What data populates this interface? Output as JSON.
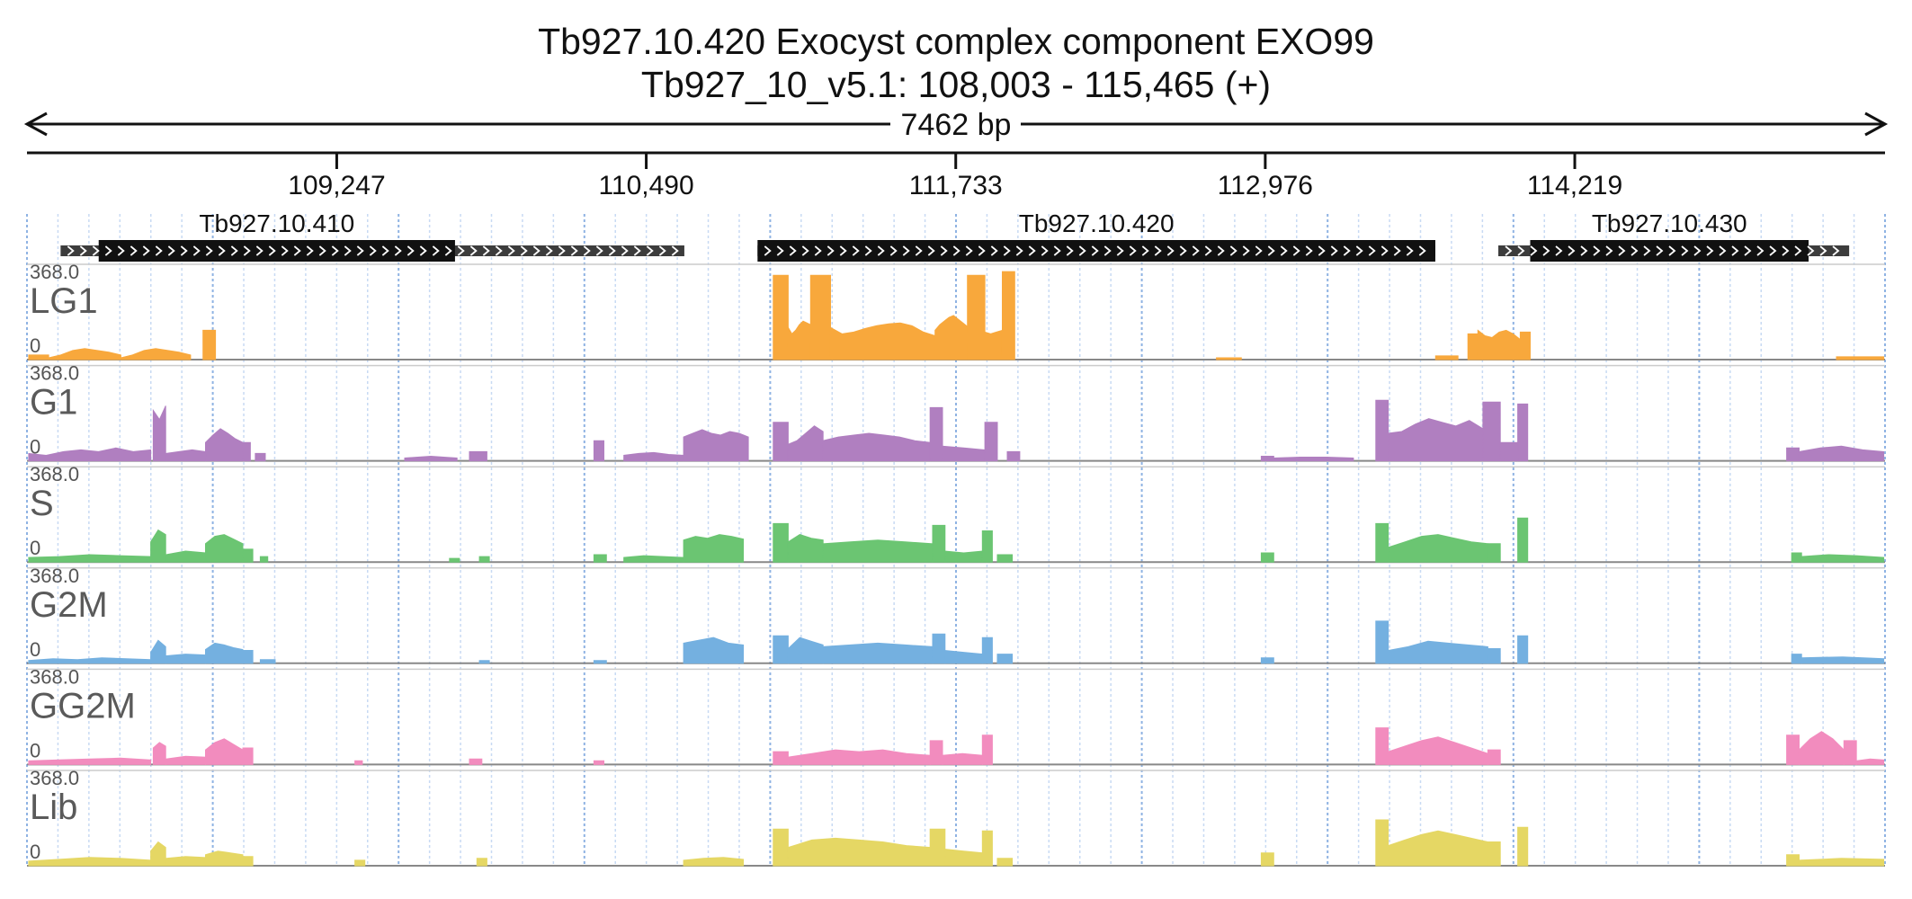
{
  "header": {
    "title": "Tb927.10.420  Exocyst complex component EXO99",
    "subtitle": "Tb927_10_v5.1: 108,003 - 115,465 (+)",
    "span_label": "7462 bp"
  },
  "chart_data": {
    "type": "area",
    "x_range": [
      108003,
      115465
    ],
    "ruler_ticks": [
      {
        "pos": 109247,
        "label": "109,247"
      },
      {
        "pos": 110490,
        "label": "110,490"
      },
      {
        "pos": 111733,
        "label": "111,733"
      },
      {
        "pos": 112976,
        "label": "112,976"
      },
      {
        "pos": 114219,
        "label": "114,219"
      }
    ],
    "genes": [
      {
        "name": "Tb927.10.410",
        "utr_start": 108138,
        "cds_start": 108291,
        "cds_end": 109722,
        "utr_end": 110643
      },
      {
        "name": "Tb927.10.420",
        "utr_start": 110937,
        "cds_start": 110937,
        "cds_end": 113659,
        "utr_end": 113659
      },
      {
        "name": "Tb927.10.430",
        "utr_start": 113912,
        "cds_start": 114040,
        "cds_end": 115158,
        "utr_end": 115321
      }
    ],
    "y_max_label": "368.0",
    "y_min_label": "0",
    "grid": true,
    "tracks": [
      {
        "name": "LG1",
        "color": "#f8a83c",
        "segments": [
          [
            108010,
            108090,
            0.05
          ],
          [
            108090,
            108380,
            [
              0.02,
              0.05,
              0.1,
              0.12,
              0.1,
              0.08,
              0.05
            ]
          ],
          [
            108380,
            108660,
            [
              0.02,
              0.05,
              0.1,
              0.12,
              0.1,
              0.08,
              0.05
            ]
          ],
          [
            108710,
            108760,
            0.32
          ],
          [
            111000,
            111060,
            0.92
          ],
          [
            111060,
            111150,
            [
              0.35,
              0.28,
              0.32,
              0.38,
              0.42,
              0.4,
              0.38
            ]
          ],
          [
            111150,
            111230,
            0.92
          ],
          [
            111230,
            111650,
            [
              0.35,
              0.28,
              0.3,
              0.34,
              0.37,
              0.39,
              0.4,
              0.37,
              0.3,
              0.26
            ]
          ],
          [
            111650,
            111780,
            [
              0.32,
              0.38,
              0.42,
              0.46,
              0.48,
              0.44,
              0.4,
              0.36
            ]
          ],
          [
            111780,
            111850,
            0.92
          ],
          [
            111850,
            111920,
            [
              0.3,
              0.28,
              0.3,
              0.32
            ]
          ],
          [
            111920,
            111970,
            0.96
          ],
          [
            112780,
            112880,
            0.02
          ],
          [
            113660,
            113750,
            0.04
          ],
          [
            113790,
            113830,
            0.28
          ],
          [
            113830,
            114000,
            [
              0.32,
              0.26,
              0.24,
              0.3,
              0.32,
              0.28,
              0.22
            ]
          ],
          [
            114000,
            114040,
            0.3
          ],
          [
            115270,
            115460,
            0.03
          ]
        ]
      },
      {
        "name": "G1",
        "color": "#b07fc0",
        "segments": [
          [
            108010,
            108500,
            [
              0.08,
              0.06,
              0.1,
              0.12,
              0.1,
              0.14,
              0.1,
              0.12
            ]
          ],
          [
            108510,
            108560,
            [
              0.55,
              0.45,
              0.6
            ]
          ],
          [
            108560,
            108720,
            [
              0.08,
              0.1,
              0.12,
              0.1
            ]
          ],
          [
            108720,
            108870,
            [
              0.2,
              0.28,
              0.35,
              0.3,
              0.24,
              0.2
            ]
          ],
          [
            108870,
            108900,
            0.2
          ],
          [
            108920,
            108960,
            0.08
          ],
          [
            109520,
            109730,
            [
              0.03,
              0.04,
              0.05,
              0.04,
              0.03
            ]
          ],
          [
            109780,
            109850,
            0.1
          ],
          [
            110280,
            110320,
            0.22
          ],
          [
            110400,
            110640,
            [
              0.06,
              0.08,
              0.09,
              0.07,
              0.06
            ]
          ],
          [
            110640,
            110900,
            [
              0.26,
              0.3,
              0.34,
              0.3,
              0.28,
              0.32,
              0.3,
              0.26
            ]
          ],
          [
            111000,
            111060,
            0.42
          ],
          [
            111060,
            111200,
            [
              0.18,
              0.22,
              0.3,
              0.38,
              0.32
            ]
          ],
          [
            111200,
            111630,
            [
              0.22,
              0.26,
              0.28,
              0.3,
              0.28,
              0.26,
              0.22,
              0.2
            ]
          ],
          [
            111630,
            111680,
            0.58
          ],
          [
            111680,
            111850,
            [
              0.16,
              0.14,
              0.12
            ]
          ],
          [
            111850,
            111900,
            0.42
          ],
          [
            111940,
            111990,
            0.1
          ],
          [
            112960,
            113010,
            0.05
          ],
          [
            113010,
            113330,
            [
              0.03,
              0.04,
              0.04,
              0.03
            ]
          ],
          [
            113420,
            113470,
            0.66
          ],
          [
            113470,
            113850,
            [
              0.3,
              0.32,
              0.4,
              0.46,
              0.42,
              0.38,
              0.44,
              0.35
            ]
          ],
          [
            113850,
            113920,
            0.64
          ],
          [
            113920,
            113990,
            0.2
          ],
          [
            113990,
            114030,
            0.62
          ],
          [
            115070,
            115120,
            0.14
          ],
          [
            115120,
            115460,
            [
              0.1,
              0.14,
              0.16,
              0.12,
              0.1
            ]
          ]
        ]
      },
      {
        "name": "S",
        "color": "#6bc572",
        "segments": [
          [
            108010,
            108500,
            [
              0.05,
              0.06,
              0.08,
              0.07,
              0.06
            ]
          ],
          [
            108500,
            108560,
            [
              0.22,
              0.35,
              0.3
            ]
          ],
          [
            108560,
            108720,
            [
              0.08,
              0.12,
              0.1
            ]
          ],
          [
            108720,
            108870,
            [
              0.2,
              0.28,
              0.3,
              0.25,
              0.2
            ]
          ],
          [
            108870,
            108910,
            0.14
          ],
          [
            108940,
            108970,
            0.06
          ],
          [
            109700,
            109740,
            0.04
          ],
          [
            109820,
            109860,
            0.06
          ],
          [
            110280,
            110330,
            0.08
          ],
          [
            110400,
            110640,
            [
              0.05,
              0.07,
              0.06,
              0.05
            ]
          ],
          [
            110640,
            110880,
            [
              0.24,
              0.28,
              0.26,
              0.3,
              0.28,
              0.25
            ]
          ],
          [
            111000,
            111060,
            0.42
          ],
          [
            111060,
            111200,
            [
              0.22,
              0.3,
              0.26,
              0.24
            ]
          ],
          [
            111200,
            111640,
            [
              0.2,
              0.22,
              0.24,
              0.22,
              0.2
            ]
          ],
          [
            111640,
            111690,
            0.4
          ],
          [
            111690,
            111840,
            [
              0.12,
              0.1,
              0.12
            ]
          ],
          [
            111840,
            111880,
            0.34
          ],
          [
            111900,
            111960,
            0.08
          ],
          [
            112960,
            113010,
            0.1
          ],
          [
            113420,
            113470,
            0.42
          ],
          [
            113470,
            113870,
            [
              0.16,
              0.22,
              0.28,
              0.3,
              0.26,
              0.22,
              0.2
            ]
          ],
          [
            113870,
            113920,
            0.2
          ],
          [
            113990,
            114030,
            0.48
          ],
          [
            115090,
            115130,
            0.1
          ],
          [
            115130,
            115460,
            [
              0.06,
              0.08,
              0.07,
              0.05
            ]
          ]
        ]
      },
      {
        "name": "G2M",
        "color": "#74b0e0",
        "segments": [
          [
            108010,
            108500,
            [
              0.03,
              0.05,
              0.04,
              0.06,
              0.05,
              0.04
            ]
          ],
          [
            108500,
            108560,
            [
              0.12,
              0.25,
              0.18
            ]
          ],
          [
            108560,
            108720,
            [
              0.08,
              0.1,
              0.09
            ]
          ],
          [
            108720,
            108870,
            [
              0.15,
              0.22,
              0.2,
              0.17,
              0.15
            ]
          ],
          [
            108870,
            108910,
            0.14
          ],
          [
            108940,
            109000,
            0.04
          ],
          [
            109820,
            109860,
            0.03
          ],
          [
            110280,
            110330,
            0.03
          ],
          [
            110640,
            110880,
            [
              0.22,
              0.25,
              0.28,
              0.22,
              0.2
            ]
          ],
          [
            111000,
            111060,
            0.3
          ],
          [
            111060,
            111200,
            [
              0.16,
              0.28,
              0.24,
              0.2
            ]
          ],
          [
            111200,
            111640,
            [
              0.18,
              0.2,
              0.22,
              0.2,
              0.18
            ]
          ],
          [
            111640,
            111690,
            0.32
          ],
          [
            111690,
            111840,
            [
              0.14,
              0.12,
              0.1
            ]
          ],
          [
            111840,
            111880,
            0.28
          ],
          [
            111900,
            111960,
            0.1
          ],
          [
            112960,
            113010,
            0.06
          ],
          [
            113420,
            113470,
            0.46
          ],
          [
            113470,
            113870,
            [
              0.14,
              0.18,
              0.24,
              0.22,
              0.2,
              0.18
            ]
          ],
          [
            113870,
            113920,
            0.16
          ],
          [
            113990,
            114030,
            0.3
          ],
          [
            115090,
            115130,
            0.1
          ],
          [
            115130,
            115460,
            [
              0.06,
              0.07,
              0.05
            ]
          ]
        ]
      },
      {
        "name": "GG2M",
        "color": "#f28cbe",
        "segments": [
          [
            108010,
            108500,
            [
              0.04,
              0.05,
              0.06,
              0.07,
              0.05
            ]
          ],
          [
            108510,
            108560,
            [
              0.18,
              0.24,
              0.2
            ]
          ],
          [
            108560,
            108720,
            [
              0.06,
              0.09,
              0.08
            ]
          ],
          [
            108720,
            108870,
            [
              0.16,
              0.24,
              0.28,
              0.22,
              0.16
            ]
          ],
          [
            108870,
            108910,
            0.18
          ],
          [
            109320,
            109350,
            0.04
          ],
          [
            109780,
            109830,
            0.06
          ],
          [
            110280,
            110320,
            0.04
          ],
          [
            111000,
            111060,
            0.14
          ],
          [
            111060,
            111630,
            [
              0.08,
              0.12,
              0.16,
              0.14,
              0.16,
              0.12,
              0.1
            ]
          ],
          [
            111630,
            111680,
            0.26
          ],
          [
            111680,
            111840,
            [
              0.1,
              0.12,
              0.1
            ]
          ],
          [
            111840,
            111880,
            0.32
          ],
          [
            113420,
            113470,
            0.4
          ],
          [
            113470,
            113870,
            [
              0.14,
              0.2,
              0.26,
              0.3,
              0.24,
              0.18,
              0.12
            ]
          ],
          [
            113870,
            113920,
            0.16
          ],
          [
            115070,
            115120,
            0.32
          ],
          [
            115120,
            115300,
            [
              0.16,
              0.28,
              0.36,
              0.28,
              0.16
            ]
          ],
          [
            115300,
            115350,
            0.26
          ],
          [
            115350,
            115460,
            [
              0.04,
              0.06,
              0.05
            ]
          ]
        ]
      },
      {
        "name": "Lib",
        "color": "#e5d764",
        "segments": [
          [
            108010,
            108500,
            [
              0.05,
              0.07,
              0.09,
              0.08,
              0.06
            ]
          ],
          [
            108500,
            108560,
            [
              0.16,
              0.26,
              0.2
            ]
          ],
          [
            108560,
            108720,
            [
              0.08,
              0.1,
              0.09
            ]
          ],
          [
            108720,
            108870,
            [
              0.12,
              0.16,
              0.14,
              0.12
            ]
          ],
          [
            108870,
            108910,
            0.1
          ],
          [
            109320,
            109360,
            0.06
          ],
          [
            109810,
            109850,
            0.08
          ],
          [
            110640,
            110880,
            [
              0.06,
              0.08,
              0.09,
              0.07
            ]
          ],
          [
            111000,
            111060,
            0.4
          ],
          [
            111060,
            111630,
            [
              0.2,
              0.28,
              0.3,
              0.28,
              0.26,
              0.22,
              0.2
            ]
          ],
          [
            111630,
            111690,
            0.4
          ],
          [
            111690,
            111840,
            [
              0.18,
              0.16,
              0.14
            ]
          ],
          [
            111840,
            111880,
            0.38
          ],
          [
            111900,
            111960,
            0.08
          ],
          [
            112960,
            113010,
            0.14
          ],
          [
            113420,
            113470,
            0.5
          ],
          [
            113470,
            113870,
            [
              0.22,
              0.28,
              0.34,
              0.38,
              0.34,
              0.3,
              0.26
            ]
          ],
          [
            113870,
            113920,
            0.26
          ],
          [
            113990,
            114030,
            0.42
          ],
          [
            115070,
            115120,
            0.12
          ],
          [
            115120,
            115460,
            [
              0.06,
              0.08,
              0.07
            ]
          ]
        ]
      }
    ]
  }
}
